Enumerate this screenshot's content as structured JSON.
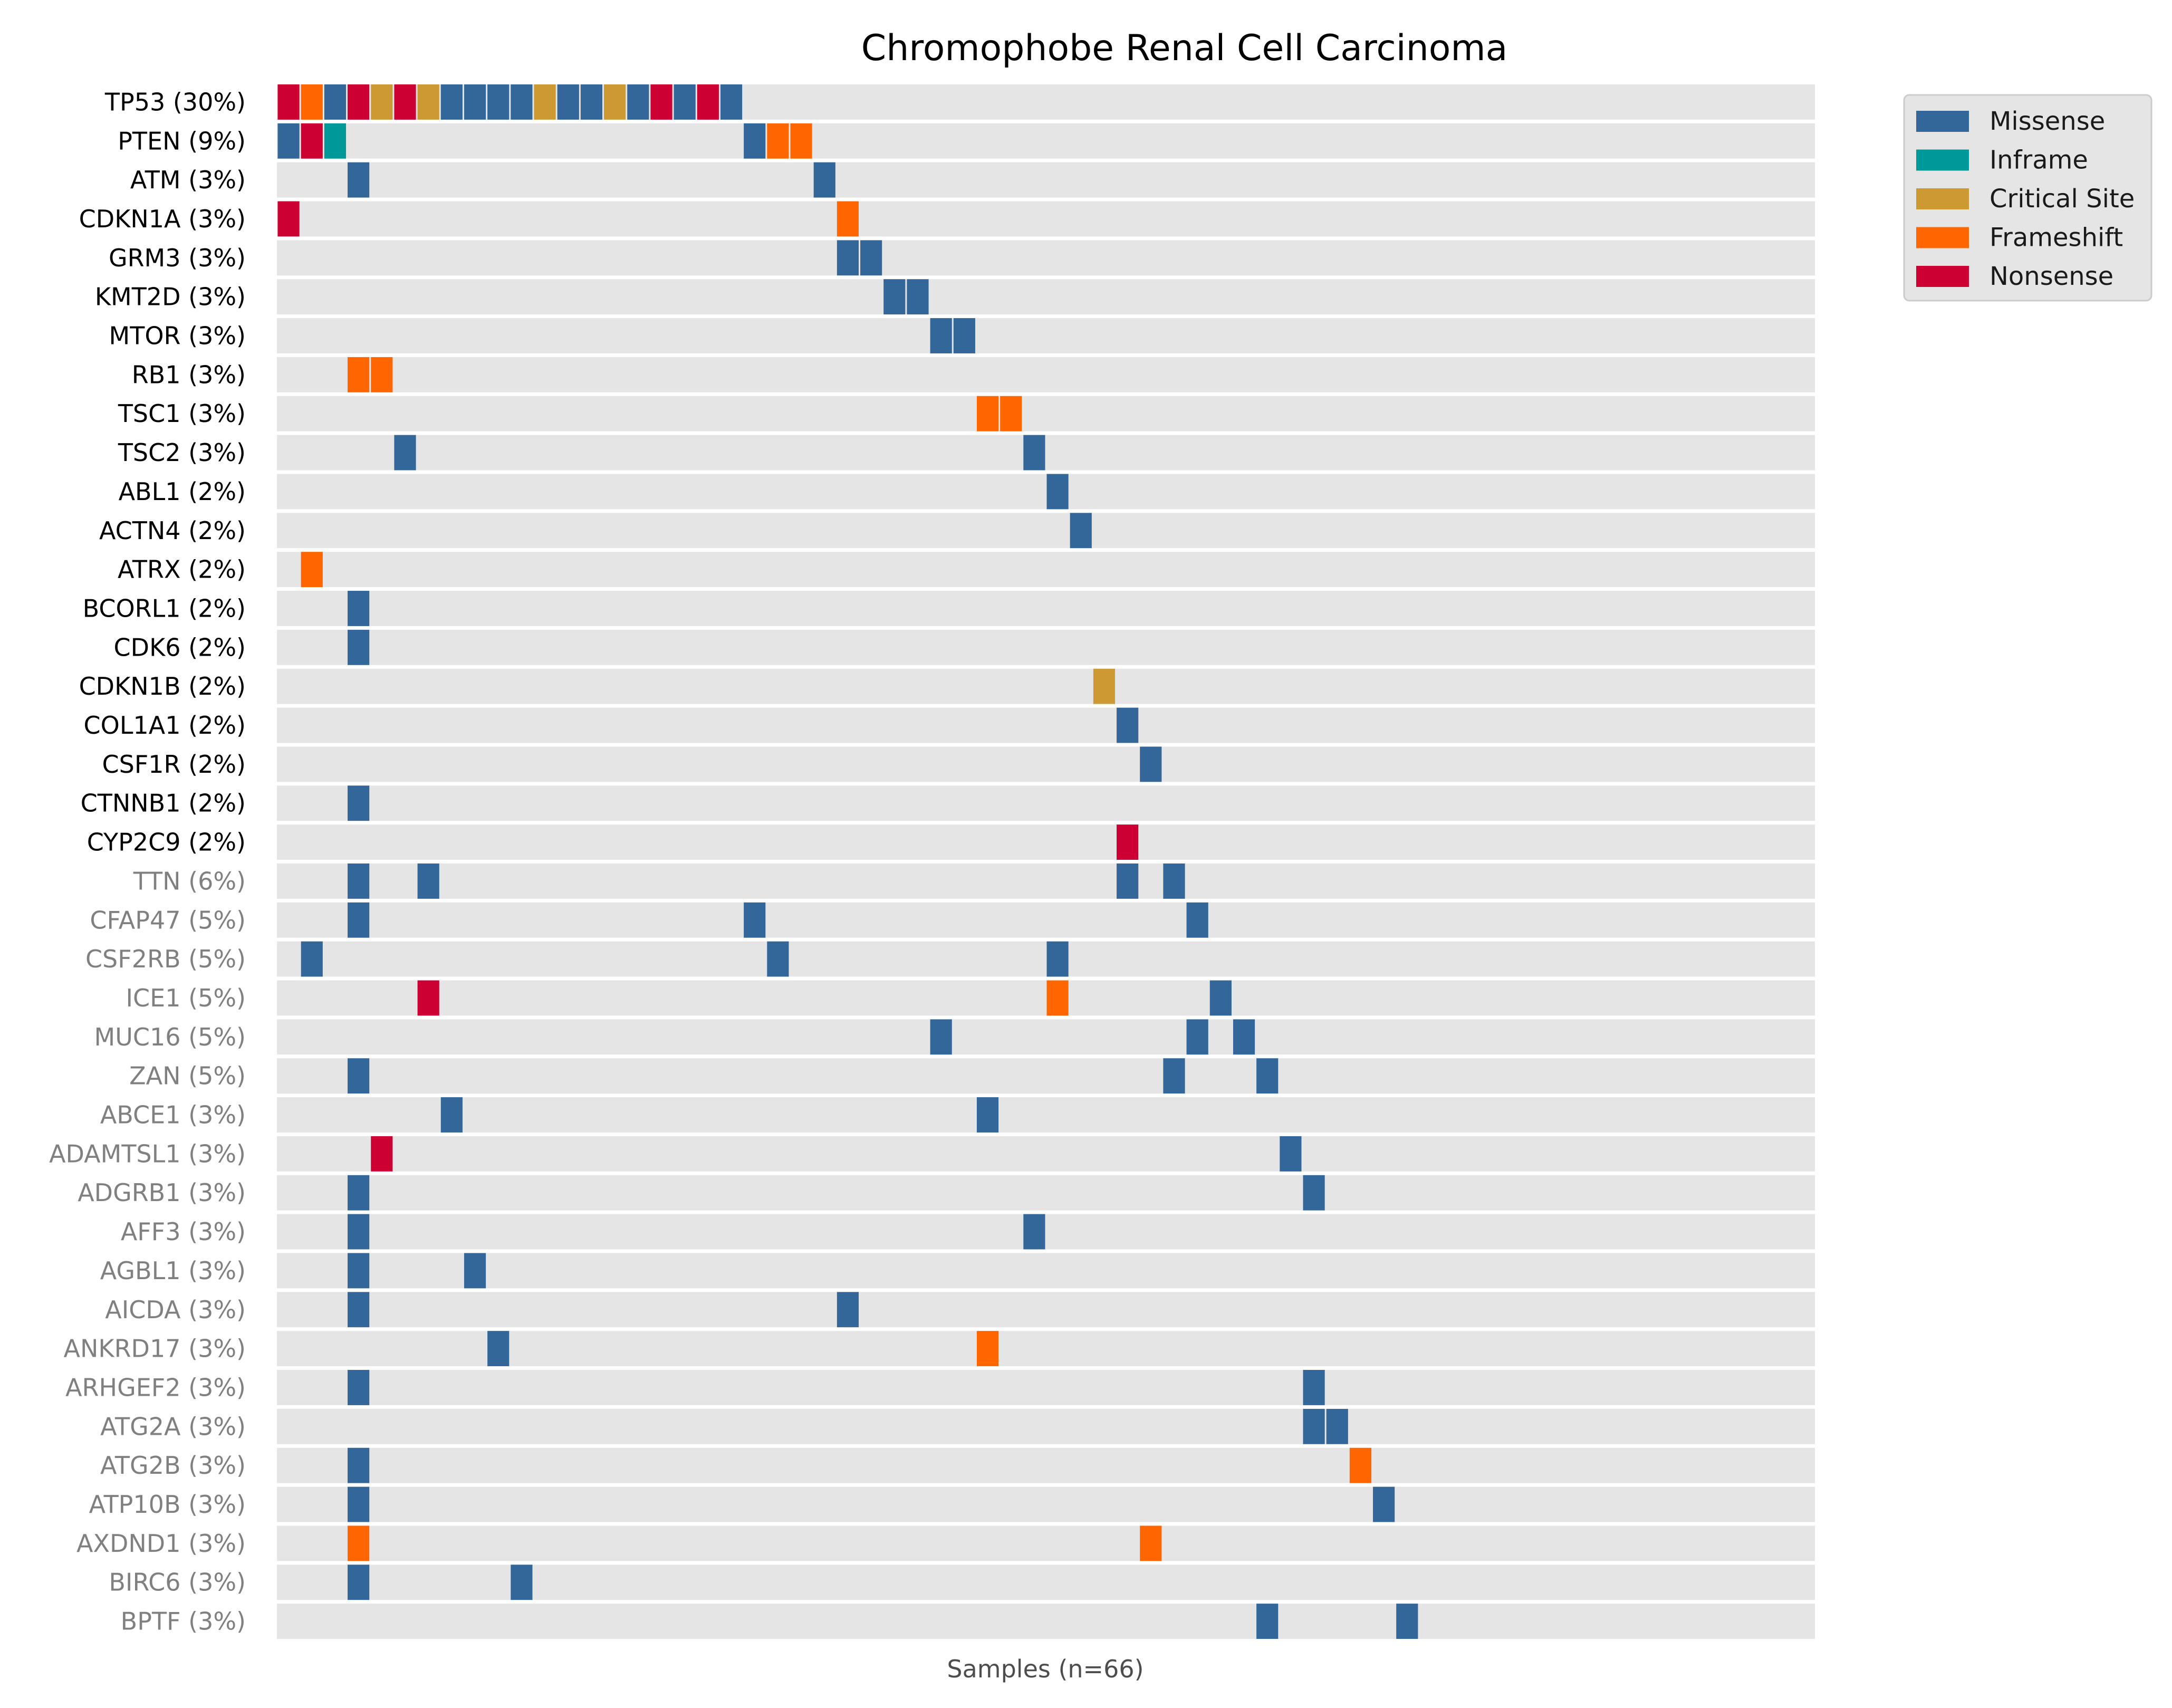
{
  "title": "Chromophobe Renal Cell Carcinoma",
  "chart_data": {
    "type": "heatmap",
    "title": "Chromophobe Renal Cell Carcinoma",
    "xlabel": "Samples (n=66)",
    "n_samples": 66,
    "background_color": "#e5e5e5",
    "mutation_types": [
      {
        "name": "Missense",
        "color": "#336699"
      },
      {
        "name": "Inframe",
        "color": "#009999"
      },
      {
        "name": "Critical Site",
        "color": "#cc9933"
      },
      {
        "name": "Frameshift",
        "color": "#ff6600"
      },
      {
        "name": "Nonsense",
        "color": "#cc0033"
      }
    ],
    "legend_position": "top-right, outside plot",
    "label_colors": {
      "highlighted": "#000000",
      "other": "#808080"
    },
    "genes": [
      {
        "label": "TP53 (30%)",
        "highlighted": true,
        "mutations": [
          [
            0,
            "Nonsense"
          ],
          [
            1,
            "Frameshift"
          ],
          [
            2,
            "Missense"
          ],
          [
            3,
            "Nonsense"
          ],
          [
            4,
            "Critical Site"
          ],
          [
            5,
            "Nonsense"
          ],
          [
            6,
            "Critical Site"
          ],
          [
            7,
            "Missense"
          ],
          [
            8,
            "Missense"
          ],
          [
            9,
            "Missense"
          ],
          [
            10,
            "Missense"
          ],
          [
            11,
            "Critical Site"
          ],
          [
            12,
            "Missense"
          ],
          [
            13,
            "Missense"
          ],
          [
            14,
            "Critical Site"
          ],
          [
            15,
            "Missense"
          ],
          [
            16,
            "Nonsense"
          ],
          [
            17,
            "Missense"
          ],
          [
            18,
            "Nonsense"
          ],
          [
            19,
            "Missense"
          ]
        ]
      },
      {
        "label": "PTEN (9%)",
        "highlighted": true,
        "mutations": [
          [
            0,
            "Missense"
          ],
          [
            1,
            "Nonsense"
          ],
          [
            2,
            "Inframe"
          ],
          [
            20,
            "Missense"
          ],
          [
            21,
            "Frameshift"
          ],
          [
            22,
            "Frameshift"
          ]
        ]
      },
      {
        "label": "ATM (3%)",
        "highlighted": true,
        "mutations": [
          [
            3,
            "Missense"
          ],
          [
            23,
            "Missense"
          ]
        ]
      },
      {
        "label": "CDKN1A (3%)",
        "highlighted": true,
        "mutations": [
          [
            0,
            "Nonsense"
          ],
          [
            24,
            "Frameshift"
          ]
        ]
      },
      {
        "label": "GRM3 (3%)",
        "highlighted": true,
        "mutations": [
          [
            24,
            "Missense"
          ],
          [
            25,
            "Missense"
          ]
        ]
      },
      {
        "label": "KMT2D (3%)",
        "highlighted": true,
        "mutations": [
          [
            26,
            "Missense"
          ],
          [
            27,
            "Missense"
          ]
        ]
      },
      {
        "label": "MTOR (3%)",
        "highlighted": true,
        "mutations": [
          [
            28,
            "Missense"
          ],
          [
            29,
            "Missense"
          ]
        ]
      },
      {
        "label": "RB1 (3%)",
        "highlighted": true,
        "mutations": [
          [
            3,
            "Frameshift"
          ],
          [
            4,
            "Frameshift"
          ]
        ]
      },
      {
        "label": "TSC1 (3%)",
        "highlighted": true,
        "mutations": [
          [
            30,
            "Frameshift"
          ],
          [
            31,
            "Frameshift"
          ]
        ]
      },
      {
        "label": "TSC2 (3%)",
        "highlighted": true,
        "mutations": [
          [
            5,
            "Missense"
          ],
          [
            32,
            "Missense"
          ]
        ]
      },
      {
        "label": "ABL1 (2%)",
        "highlighted": true,
        "mutations": [
          [
            33,
            "Missense"
          ]
        ]
      },
      {
        "label": "ACTN4 (2%)",
        "highlighted": true,
        "mutations": [
          [
            34,
            "Missense"
          ]
        ]
      },
      {
        "label": "ATRX (2%)",
        "highlighted": true,
        "mutations": [
          [
            1,
            "Frameshift"
          ]
        ]
      },
      {
        "label": "BCORL1 (2%)",
        "highlighted": true,
        "mutations": [
          [
            3,
            "Missense"
          ]
        ]
      },
      {
        "label": "CDK6 (2%)",
        "highlighted": true,
        "mutations": [
          [
            3,
            "Missense"
          ]
        ]
      },
      {
        "label": "CDKN1B (2%)",
        "highlighted": true,
        "mutations": [
          [
            35,
            "Critical Site"
          ]
        ]
      },
      {
        "label": "COL1A1 (2%)",
        "highlighted": true,
        "mutations": [
          [
            36,
            "Missense"
          ]
        ]
      },
      {
        "label": "CSF1R (2%)",
        "highlighted": true,
        "mutations": [
          [
            37,
            "Missense"
          ]
        ]
      },
      {
        "label": "CTNNB1 (2%)",
        "highlighted": true,
        "mutations": [
          [
            3,
            "Missense"
          ]
        ]
      },
      {
        "label": "CYP2C9 (2%)",
        "highlighted": true,
        "mutations": [
          [
            36,
            "Nonsense"
          ]
        ]
      },
      {
        "label": "TTN (6%)",
        "highlighted": false,
        "mutations": [
          [
            3,
            "Missense"
          ],
          [
            6,
            "Missense"
          ],
          [
            36,
            "Missense"
          ],
          [
            38,
            "Missense"
          ]
        ]
      },
      {
        "label": "CFAP47 (5%)",
        "highlighted": false,
        "mutations": [
          [
            3,
            "Missense"
          ],
          [
            20,
            "Missense"
          ],
          [
            39,
            "Missense"
          ]
        ]
      },
      {
        "label": "CSF2RB (5%)",
        "highlighted": false,
        "mutations": [
          [
            1,
            "Missense"
          ],
          [
            21,
            "Missense"
          ],
          [
            33,
            "Missense"
          ]
        ]
      },
      {
        "label": "ICE1 (5%)",
        "highlighted": false,
        "mutations": [
          [
            6,
            "Nonsense"
          ],
          [
            33,
            "Frameshift"
          ],
          [
            40,
            "Missense"
          ]
        ]
      },
      {
        "label": "MUC16 (5%)",
        "highlighted": false,
        "mutations": [
          [
            28,
            "Missense"
          ],
          [
            39,
            "Missense"
          ],
          [
            41,
            "Missense"
          ]
        ]
      },
      {
        "label": "ZAN (5%)",
        "highlighted": false,
        "mutations": [
          [
            3,
            "Missense"
          ],
          [
            38,
            "Missense"
          ],
          [
            42,
            "Missense"
          ]
        ]
      },
      {
        "label": "ABCE1 (3%)",
        "highlighted": false,
        "mutations": [
          [
            7,
            "Missense"
          ],
          [
            30,
            "Missense"
          ]
        ]
      },
      {
        "label": "ADAMTSL1 (3%)",
        "highlighted": false,
        "mutations": [
          [
            4,
            "Nonsense"
          ],
          [
            43,
            "Missense"
          ]
        ]
      },
      {
        "label": "ADGRB1 (3%)",
        "highlighted": false,
        "mutations": [
          [
            3,
            "Missense"
          ],
          [
            44,
            "Missense"
          ]
        ]
      },
      {
        "label": "AFF3 (3%)",
        "highlighted": false,
        "mutations": [
          [
            3,
            "Missense"
          ],
          [
            32,
            "Missense"
          ]
        ]
      },
      {
        "label": "AGBL1 (3%)",
        "highlighted": false,
        "mutations": [
          [
            3,
            "Missense"
          ],
          [
            8,
            "Missense"
          ]
        ]
      },
      {
        "label": "AICDA (3%)",
        "highlighted": false,
        "mutations": [
          [
            3,
            "Missense"
          ],
          [
            24,
            "Missense"
          ]
        ]
      },
      {
        "label": "ANKRD17 (3%)",
        "highlighted": false,
        "mutations": [
          [
            9,
            "Missense"
          ],
          [
            30,
            "Frameshift"
          ]
        ]
      },
      {
        "label": "ARHGEF2 (3%)",
        "highlighted": false,
        "mutations": [
          [
            3,
            "Missense"
          ],
          [
            44,
            "Missense"
          ]
        ]
      },
      {
        "label": "ATG2A (3%)",
        "highlighted": false,
        "mutations": [
          [
            44,
            "Missense"
          ],
          [
            45,
            "Missense"
          ]
        ]
      },
      {
        "label": "ATG2B (3%)",
        "highlighted": false,
        "mutations": [
          [
            3,
            "Missense"
          ],
          [
            46,
            "Frameshift"
          ]
        ]
      },
      {
        "label": "ATP10B (3%)",
        "highlighted": false,
        "mutations": [
          [
            3,
            "Missense"
          ],
          [
            47,
            "Missense"
          ]
        ]
      },
      {
        "label": "AXDND1 (3%)",
        "highlighted": false,
        "mutations": [
          [
            3,
            "Frameshift"
          ],
          [
            37,
            "Frameshift"
          ]
        ]
      },
      {
        "label": "BIRC6 (3%)",
        "highlighted": false,
        "mutations": [
          [
            3,
            "Missense"
          ],
          [
            10,
            "Missense"
          ]
        ]
      },
      {
        "label": "BPTF (3%)",
        "highlighted": false,
        "mutations": [
          [
            42,
            "Missense"
          ],
          [
            48,
            "Missense"
          ]
        ]
      }
    ]
  }
}
